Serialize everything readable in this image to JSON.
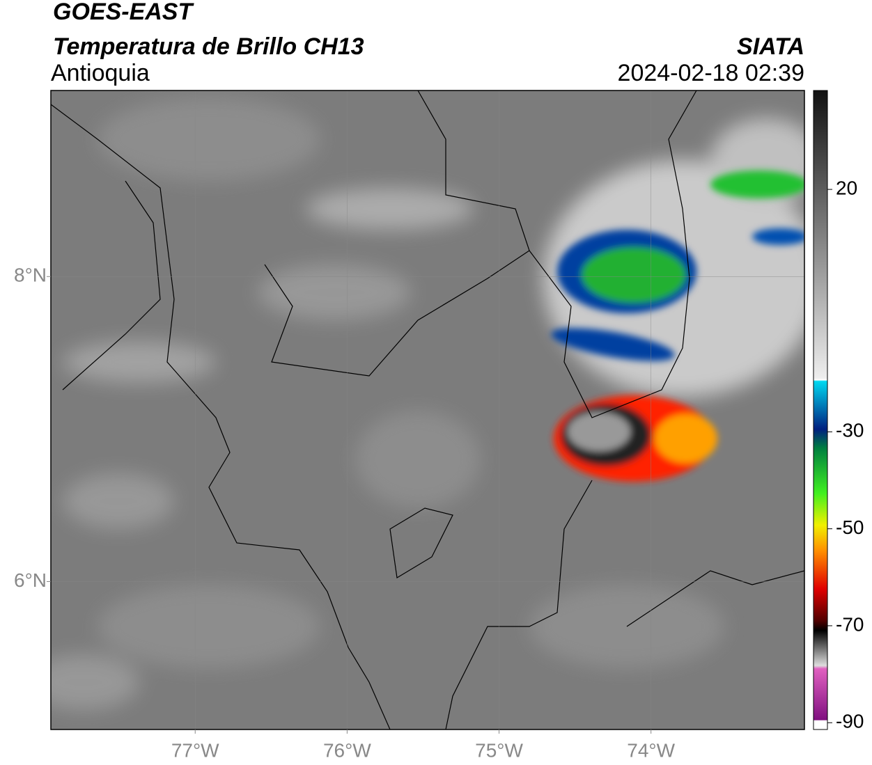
{
  "header": {
    "title": "GOES-EAST",
    "subtitle": "Temperatura de Brillo CH13",
    "region": "Antioquia",
    "source": "SIATA",
    "datetime": "2024-02-18 02:39"
  },
  "map": {
    "xlim": [
      -77.95,
      -72.99
    ],
    "ylim": [
      5.03,
      9.22
    ],
    "xticks": [
      {
        "value": -77,
        "label": "77°W"
      },
      {
        "value": -76,
        "label": "76°W"
      },
      {
        "value": -75,
        "label": "75°W"
      },
      {
        "value": -74,
        "label": "74°W"
      }
    ],
    "yticks": [
      {
        "value": 8,
        "label": "8°N"
      },
      {
        "value": 6,
        "label": "6°N"
      }
    ],
    "grid": true
  },
  "colorbar": {
    "lim": [
      -91.4,
      40.4
    ],
    "ticks": [
      20,
      -30,
      -50,
      -70,
      -90
    ]
  }
}
